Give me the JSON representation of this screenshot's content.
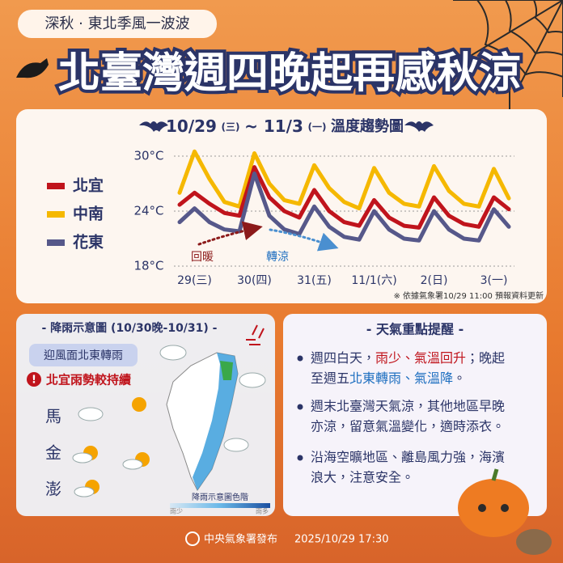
{
  "header": {
    "tag": "深秋 · 東北季風一波波",
    "title": "北臺灣週四晚起再感秋涼"
  },
  "chart_data": {
    "type": "line",
    "title": [
      "10/29",
      "(三)",
      "~ 11/3",
      "(一)",
      "溫度趨勢圖"
    ],
    "categories": [
      null,
      "29(三)",
      null,
      null,
      null,
      "30(四)",
      null,
      null,
      null,
      "31(五)",
      null,
      null,
      null,
      "11/1(六)",
      null,
      null,
      null,
      "2(日)",
      null,
      null,
      null,
      "3(一)",
      null
    ],
    "series": [
      {
        "name": "北宜",
        "color": "#c0141c",
        "values": [
          24.7,
          26.0,
          24.8,
          23.8,
          23.5,
          28.8,
          25.5,
          24.0,
          23.3,
          26.3,
          24.0,
          22.8,
          22.4,
          25.2,
          23.3,
          22.4,
          22.2,
          25.5,
          23.5,
          22.6,
          22.3,
          25.5,
          24.2
        ]
      },
      {
        "name": "中南",
        "color": "#f5b800",
        "values": [
          26.0,
          30.5,
          27.5,
          25.0,
          24.5,
          30.3,
          27.0,
          25.2,
          24.8,
          29.0,
          26.5,
          25.0,
          24.3,
          28.7,
          26.0,
          24.8,
          24.5,
          28.9,
          26.2,
          24.8,
          24.5,
          28.6,
          25.4
        ]
      },
      {
        "name": "花東",
        "color": "#56588a",
        "values": [
          22.8,
          24.3,
          22.8,
          22.0,
          21.8,
          28.1,
          23.5,
          22.0,
          21.5,
          24.5,
          22.3,
          21.2,
          20.9,
          24.0,
          22.0,
          21.0,
          20.8,
          24.0,
          22.0,
          21.0,
          20.8,
          24.2,
          22.3
        ]
      }
    ],
    "ylim": [
      17.3,
      30.7
    ],
    "yticks": [
      {
        "value": 30,
        "label": "30°C"
      },
      {
        "value": 24,
        "label": "24°C"
      },
      {
        "value": 18,
        "label": "18°C"
      }
    ],
    "grid": true,
    "legend": "left",
    "annotations": [
      "回暖",
      "轉涼"
    ],
    "note": "※ 依據氣象署10/29 11:00 預報資料更新"
  },
  "rain_panel": {
    "title": "- 降雨示意圖 (10/30晚-10/31) -",
    "badge": "迎風面北東轉雨",
    "alert": "北宜雨勢較持續",
    "islands": [
      "馬",
      "金",
      "澎"
    ],
    "scale_title": "降雨示意圖色階",
    "scale_low": "雨少",
    "scale_high": "雨多"
  },
  "notes_panel": {
    "title": "- 天氣重點提醒 -",
    "items": [
      [
        [
          "週四白天，",
          "雨少、氣溫回升",
          "；晚起"
        ],
        [
          "至週五",
          "北東轉雨、氣溫降",
          "。"
        ]
      ],
      [
        [
          "週末北臺灣天氣涼，其他地區早晚"
        ],
        [
          "亦涼，留意氣溫變化，適時添衣。"
        ]
      ],
      [
        [
          "沿海空曠地區、離島風力強，海濱"
        ],
        [
          "浪大，注意安全。"
        ]
      ]
    ]
  },
  "footer": {
    "issuer": "中央氣象署發布",
    "time": "2025/10/29 17:30"
  }
}
